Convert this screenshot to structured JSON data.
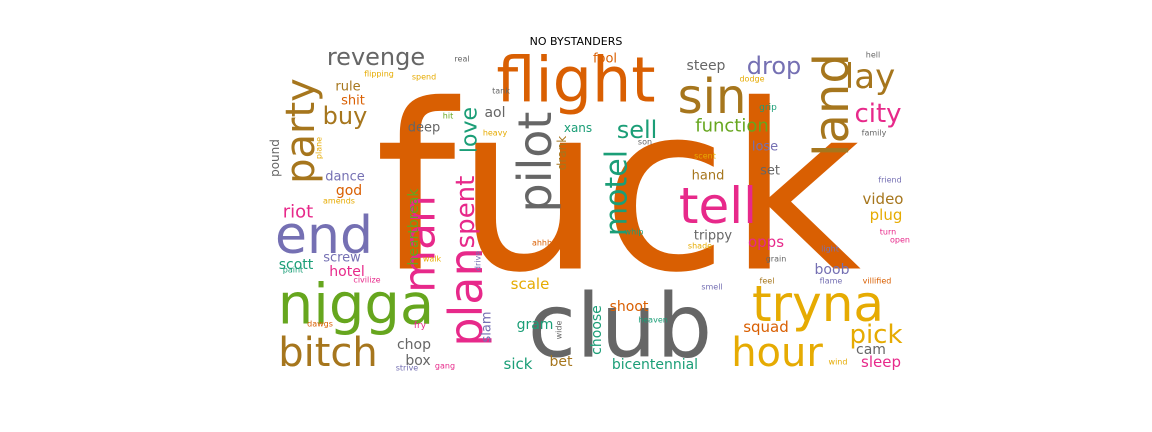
{
  "chart_data": {
    "type": "wordcloud",
    "title": "NO BYSTANDERS",
    "grid": false,
    "words": [
      {
        "text": "fuck",
        "color": "#d95f02"
      },
      {
        "text": "club",
        "color": "#666666"
      },
      {
        "text": "nigga",
        "color": "#66a61e"
      },
      {
        "text": "flight",
        "color": "#d95f02"
      },
      {
        "text": "tryna",
        "color": "#e6ab02"
      },
      {
        "text": "end",
        "color": "#7570b3"
      },
      {
        "text": "bitch",
        "color": "#a6761d"
      },
      {
        "text": "party",
        "color": "#a6761d"
      },
      {
        "text": "tell",
        "color": "#e7298a"
      },
      {
        "text": "plan",
        "color": "#e7298a"
      },
      {
        "text": "man",
        "color": "#e7298a"
      },
      {
        "text": "hour",
        "color": "#e6ab02"
      },
      {
        "text": "pilot",
        "color": "#666666"
      },
      {
        "text": "land",
        "color": "#a6761d"
      },
      {
        "text": "sin",
        "color": "#a6761d"
      },
      {
        "text": "motel",
        "color": "#1b9e77"
      },
      {
        "text": "lay",
        "color": "#a6761d"
      },
      {
        "text": "pick",
        "color": "#e6ab02"
      },
      {
        "text": "spent",
        "color": "#e7298a"
      },
      {
        "text": "revenge",
        "color": "#666666"
      },
      {
        "text": "drop",
        "color": "#7570b3"
      },
      {
        "text": "love",
        "color": "#1b9e77"
      },
      {
        "text": "city",
        "color": "#e7298a"
      },
      {
        "text": "buy",
        "color": "#a6761d"
      },
      {
        "text": "sell",
        "color": "#1b9e77"
      },
      {
        "text": "function",
        "color": "#66a61e"
      },
      {
        "text": "riot",
        "color": "#e7298a"
      },
      {
        "text": "heartbreak",
        "color": "#66a61e"
      },
      {
        "text": "squad",
        "color": "#d95f02"
      },
      {
        "text": "sleep",
        "color": "#e7298a"
      },
      {
        "text": "cam",
        "color": "#666666"
      },
      {
        "text": "video",
        "color": "#a6761d"
      },
      {
        "text": "plug",
        "color": "#e6ab02"
      },
      {
        "text": "opps",
        "color": "#e7298a"
      },
      {
        "text": "boob",
        "color": "#7570b3"
      },
      {
        "text": "scale",
        "color": "#e6ab02"
      },
      {
        "text": "shoot",
        "color": "#d95f02"
      },
      {
        "text": "choose",
        "color": "#1b9e77"
      },
      {
        "text": "sick",
        "color": "#1b9e77"
      },
      {
        "text": "bet",
        "color": "#a6761d"
      },
      {
        "text": "bicentennial",
        "color": "#1b9e77"
      },
      {
        "text": "gram",
        "color": "#1b9e77"
      },
      {
        "text": "slam",
        "color": "#7570b3"
      },
      {
        "text": "chop",
        "color": "#666666"
      },
      {
        "text": "box",
        "color": "#666666"
      },
      {
        "text": "hotel",
        "color": "#e7298a"
      },
      {
        "text": "scott",
        "color": "#1b9e77"
      },
      {
        "text": "screw",
        "color": "#7570b3"
      },
      {
        "text": "dance",
        "color": "#7570b3"
      },
      {
        "text": "god",
        "color": "#d95f02"
      },
      {
        "text": "deep",
        "color": "#666666"
      },
      {
        "text": "pound",
        "color": "#666666"
      },
      {
        "text": "shit",
        "color": "#d95f02"
      },
      {
        "text": "rule",
        "color": "#a6761d"
      },
      {
        "text": "aol",
        "color": "#666666"
      },
      {
        "text": "xans",
        "color": "#1b9e77"
      },
      {
        "text": "drank",
        "color": "#a6761d"
      },
      {
        "text": "steep",
        "color": "#666666"
      },
      {
        "text": "fool",
        "color": "#d95f02"
      },
      {
        "text": "lose",
        "color": "#7570b3"
      },
      {
        "text": "set",
        "color": "#666666"
      },
      {
        "text": "hand",
        "color": "#a6761d"
      },
      {
        "text": "trippy",
        "color": "#666666"
      },
      {
        "text": "flipping",
        "color": "#e6ab02"
      },
      {
        "text": "spend",
        "color": "#e6ab02"
      },
      {
        "text": "real",
        "color": "#666666"
      },
      {
        "text": "tank",
        "color": "#666666"
      },
      {
        "text": "hit",
        "color": "#66a61e"
      },
      {
        "text": "heavy",
        "color": "#e6ab02"
      },
      {
        "text": "son",
        "color": "#666666"
      },
      {
        "text": "grip",
        "color": "#1b9e77"
      },
      {
        "text": "dodge",
        "color": "#e6ab02"
      },
      {
        "text": "hell",
        "color": "#666666"
      },
      {
        "text": "family",
        "color": "#666666"
      },
      {
        "text": "scent",
        "color": "#e6ab02"
      },
      {
        "text": "friend",
        "color": "#7570b3"
      },
      {
        "text": "turn",
        "color": "#e7298a"
      },
      {
        "text": "open",
        "color": "#e7298a"
      },
      {
        "text": "light",
        "color": "#7570b3"
      },
      {
        "text": "grain",
        "color": "#666666"
      },
      {
        "text": "shade",
        "color": "#e6ab02"
      },
      {
        "text": "whip",
        "color": "#1b9e77"
      },
      {
        "text": "ahhh",
        "color": "#d95f02"
      },
      {
        "text": "heaven",
        "color": "#1b9e77"
      },
      {
        "text": "smell",
        "color": "#7570b3"
      },
      {
        "text": "feel",
        "color": "#a6761d"
      },
      {
        "text": "flame",
        "color": "#7570b3"
      },
      {
        "text": "villified",
        "color": "#d95f02"
      },
      {
        "text": "wind",
        "color": "#e6ab02"
      },
      {
        "text": "wide",
        "color": "#666666"
      },
      {
        "text": "drive",
        "color": "#7570b3"
      },
      {
        "text": "walk",
        "color": "#e6ab02"
      },
      {
        "text": "civilize",
        "color": "#e7298a"
      },
      {
        "text": "paint",
        "color": "#1b9e77"
      },
      {
        "text": "dawgs",
        "color": "#d95f02"
      },
      {
        "text": "fry",
        "color": "#e7298a"
      },
      {
        "text": "strive",
        "color": "#7570b3"
      },
      {
        "text": "gang",
        "color": "#e7298a"
      },
      {
        "text": "amends",
        "color": "#e6ab02"
      },
      {
        "text": "plane",
        "color": "#e6ab02"
      }
    ]
  }
}
